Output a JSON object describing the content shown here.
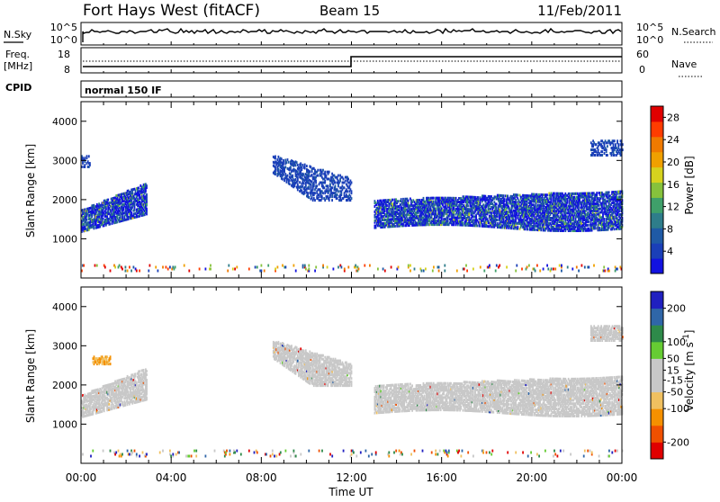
{
  "header": {
    "station": "Fort Hays West (fitACF)",
    "beam": "Beam 15",
    "date": "11/Feb/2011"
  },
  "panels": {
    "nsky": {
      "left_label": "N.Sky",
      "right_label": "N.Search",
      "left_ticks": [
        "10^5",
        "10^0"
      ],
      "right_ticks": [
        "10^5",
        "10^0"
      ]
    },
    "freq": {
      "left_label_1": "Freq.",
      "left_label_2": "[MHz]",
      "right_label": "Nave",
      "left_ticks": [
        "18",
        "8"
      ],
      "right_ticks": [
        "60",
        "0"
      ]
    },
    "cpid": {
      "label": "CPID",
      "text": "normal 150 IF"
    }
  },
  "x_axis": {
    "label": "Time UT",
    "ticks": [
      "00:00",
      "04:00",
      "08:00",
      "12:00",
      "16:00",
      "20:00",
      "00:00"
    ]
  },
  "colors": {
    "power": [
      "#1212e0",
      "#1a3fb8",
      "#1f5aa6",
      "#2e7d8a",
      "#3fa06a",
      "#86c23c",
      "#d6d21e",
      "#f0a000",
      "#f07a00",
      "#ff3c00",
      "#e00000"
    ],
    "velocity": [
      "#e00000",
      "#f05000",
      "#f59000",
      "#f0c060",
      "#c8c8c8",
      "#c8c8c8",
      "#66cc33",
      "#2e8a4a",
      "#2f66a8",
      "#2020c0"
    ]
  },
  "chart_data": [
    {
      "type": "heatmap",
      "title": "",
      "xlabel": "",
      "ylabel": "Slant Range [km]",
      "x_range_hours": [
        0,
        24
      ],
      "ylim": [
        0,
        4500
      ],
      "yticks": [
        1000,
        2000,
        3000,
        4000
      ],
      "colorbar": {
        "label": "Power [dB]",
        "ticks": [
          28,
          24,
          20,
          16,
          12,
          8,
          4
        ],
        "range": [
          0,
          30
        ]
      },
      "echo_regions": [
        {
          "t_start": 0.0,
          "t_end": 2.9,
          "range_start": 1200,
          "range_end": 2400,
          "level": "mixed"
        },
        {
          "t_start": 0.0,
          "t_end": 0.4,
          "range_start": 2800,
          "range_end": 3100,
          "level": "low"
        },
        {
          "t_start": 8.5,
          "t_end": 12.0,
          "range_start": 1900,
          "range_end": 3100,
          "level": "low"
        },
        {
          "t_start": 13.0,
          "t_end": 24.0,
          "range_start": 1200,
          "range_end": 2300,
          "level": "mixed"
        },
        {
          "t_start": 22.6,
          "t_end": 24.0,
          "range_start": 3100,
          "range_end": 3500,
          "level": "low"
        },
        {
          "t_start": 0.0,
          "t_end": 24.0,
          "range_start": 150,
          "range_end": 300,
          "level": "sparse"
        }
      ]
    },
    {
      "type": "heatmap",
      "title": "",
      "xlabel": "Time UT",
      "ylabel": "Slant Range [km]",
      "x_range_hours": [
        0,
        24
      ],
      "ylim": [
        0,
        4500
      ],
      "yticks": [
        1000,
        2000,
        3000,
        4000
      ],
      "colorbar": {
        "label": "Velocity [m s^-1]",
        "ticks": [
          200,
          100,
          50,
          15,
          -15,
          -50,
          -100,
          -200
        ],
        "range": [
          -250,
          250
        ]
      },
      "echo_regions": [
        {
          "t_start": 0.0,
          "t_end": 2.9,
          "range_start": 1200,
          "range_end": 2400,
          "level": "ground"
        },
        {
          "t_start": 0.5,
          "t_end": 1.3,
          "range_start": 2500,
          "range_end": 2700,
          "level": "negative"
        },
        {
          "t_start": 8.5,
          "t_end": 12.0,
          "range_start": 1900,
          "range_end": 3100,
          "level": "ground"
        },
        {
          "t_start": 13.0,
          "t_end": 24.0,
          "range_start": 1200,
          "range_end": 2300,
          "level": "ground"
        },
        {
          "t_start": 22.6,
          "t_end": 24.0,
          "range_start": 3100,
          "range_end": 3500,
          "level": "ground"
        },
        {
          "t_start": 0.0,
          "t_end": 24.0,
          "range_start": 150,
          "range_end": 300,
          "level": "sparse"
        }
      ]
    }
  ]
}
